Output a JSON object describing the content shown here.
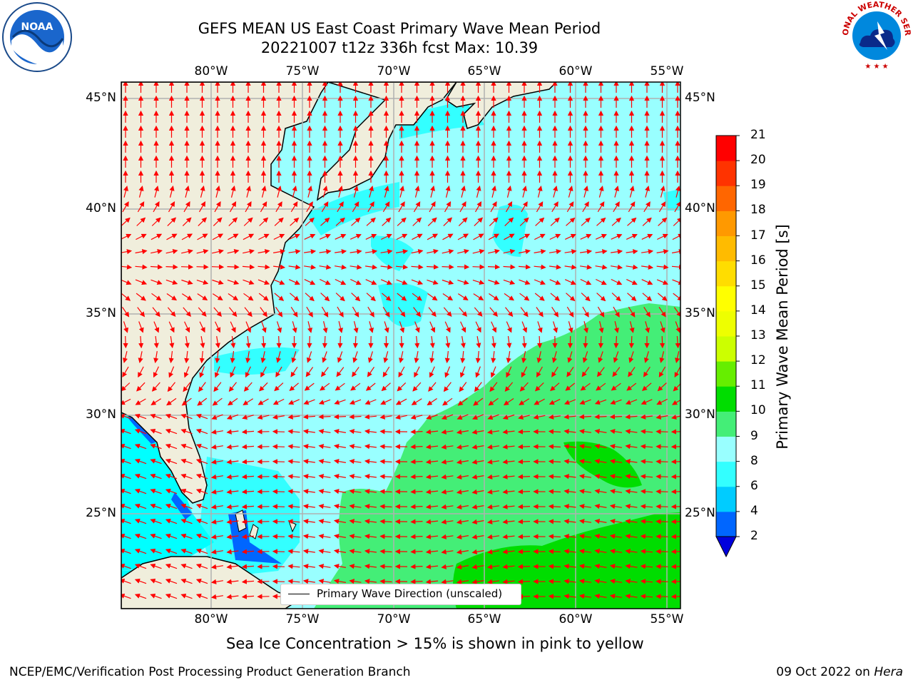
{
  "title_line1": "GEFS MEAN US East Coast Primary Wave Mean Period",
  "title_line2": "20221007 t12z 336h fcst   Max: 10.39",
  "subtitle": "Sea Ice Concentration > 15% is shown in pink to yellow",
  "footer_left": "NCEP/EMC/Verification Post Processing Product Generation Branch",
  "footer_right_prefix": "09 Oct 2022 on ",
  "footer_right_host": "Hera",
  "legend_label": "Primary Wave Direction (unscaled)",
  "colorbar": {
    "label": "Primary Wave Mean Period [s]",
    "ticks": [
      "2",
      "4",
      "6",
      "8",
      "9",
      "10",
      "11",
      "12",
      "13",
      "14",
      "15",
      "16",
      "17",
      "18",
      "19",
      "20",
      "21"
    ],
    "colors": [
      "#0066ff",
      "#00ccff",
      "#33ffff",
      "#99ffff",
      "#44ee77",
      "#00dd00",
      "#66ee00",
      "#ccff00",
      "#eeff00",
      "#ffff00",
      "#ffdd00",
      "#ffbb00",
      "#ff9900",
      "#ff6600",
      "#ff3300",
      "#ff0000"
    ],
    "extend_color": "#0000dd"
  },
  "lon_labels": [
    "80°W",
    "75°W",
    "70°W",
    "65°W",
    "60°W",
    "55°W"
  ],
  "lat_labels": [
    "45°N",
    "40°N",
    "35°N",
    "30°N",
    "25°N"
  ],
  "colors": {
    "land": "#f0eedc",
    "ocean_light": "#99ffff",
    "ocean_mid": "#33ffff",
    "ocean_green": "#44ee77",
    "ocean_darkgreen": "#00dd00",
    "ocean_blue": "#0066ff",
    "arrow": "#ff0000",
    "grid": "#b0b0b0"
  },
  "logos": {
    "noaa": "NOAA",
    "nws": "NATIONAL WEATHER SERVICE"
  }
}
